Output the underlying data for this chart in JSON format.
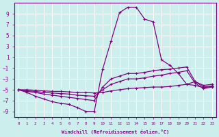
{
  "xlabel": "Windchill (Refroidissement éolien,°C)",
  "bg_color": "#cceeed",
  "line_color": "#800080",
  "grid_color": "#ffffff",
  "x_hours": [
    0,
    1,
    2,
    3,
    4,
    5,
    6,
    7,
    8,
    9,
    10,
    11,
    12,
    13,
    14,
    15,
    16,
    17,
    18,
    19,
    20,
    21,
    22,
    23
  ],
  "series1": [
    -5.0,
    -5.5,
    -6.2,
    -6.7,
    -7.2,
    -7.5,
    -7.7,
    -8.3,
    -9.0,
    -9.0,
    -1.2,
    4.0,
    9.2,
    10.2,
    10.2,
    8.0,
    7.5,
    0.5,
    -0.5,
    -2.0,
    -4.0,
    -3.5,
    -4.2,
    -4.0
  ],
  "series2": [
    -5.0,
    -5.3,
    -5.5,
    -5.8,
    -6.0,
    -6.2,
    -6.4,
    -6.6,
    -6.8,
    -7.0,
    -4.5,
    -3.0,
    -2.5,
    -2.0,
    -2.0,
    -1.8,
    -1.5,
    -1.3,
    -1.2,
    -1.0,
    -0.8,
    -3.5,
    -4.5,
    -4.3
  ],
  "series3": [
    -5.0,
    -5.2,
    -5.3,
    -5.5,
    -5.6,
    -5.7,
    -5.8,
    -6.0,
    -6.1,
    -6.2,
    -5.0,
    -4.0,
    -3.5,
    -3.0,
    -3.0,
    -2.8,
    -2.5,
    -2.3,
    -2.0,
    -1.8,
    -1.5,
    -3.8,
    -4.8,
    -4.5
  ],
  "series4": [
    -5.0,
    -5.0,
    -5.1,
    -5.2,
    -5.3,
    -5.3,
    -5.4,
    -5.5,
    -5.5,
    -5.6,
    -5.5,
    -5.2,
    -5.0,
    -4.8,
    -4.7,
    -4.6,
    -4.5,
    -4.5,
    -4.4,
    -4.2,
    -4.0,
    -4.2,
    -4.6,
    -4.4
  ],
  "ylim": [
    -10,
    11
  ],
  "xlim": [
    -0.5,
    23.5
  ],
  "yticks": [
    -9,
    -7,
    -5,
    -3,
    -1,
    1,
    3,
    5,
    7,
    9
  ],
  "xticks": [
    0,
    1,
    2,
    3,
    4,
    5,
    6,
    7,
    8,
    9,
    10,
    11,
    12,
    13,
    14,
    15,
    16,
    17,
    18,
    19,
    20,
    21,
    22,
    23
  ]
}
